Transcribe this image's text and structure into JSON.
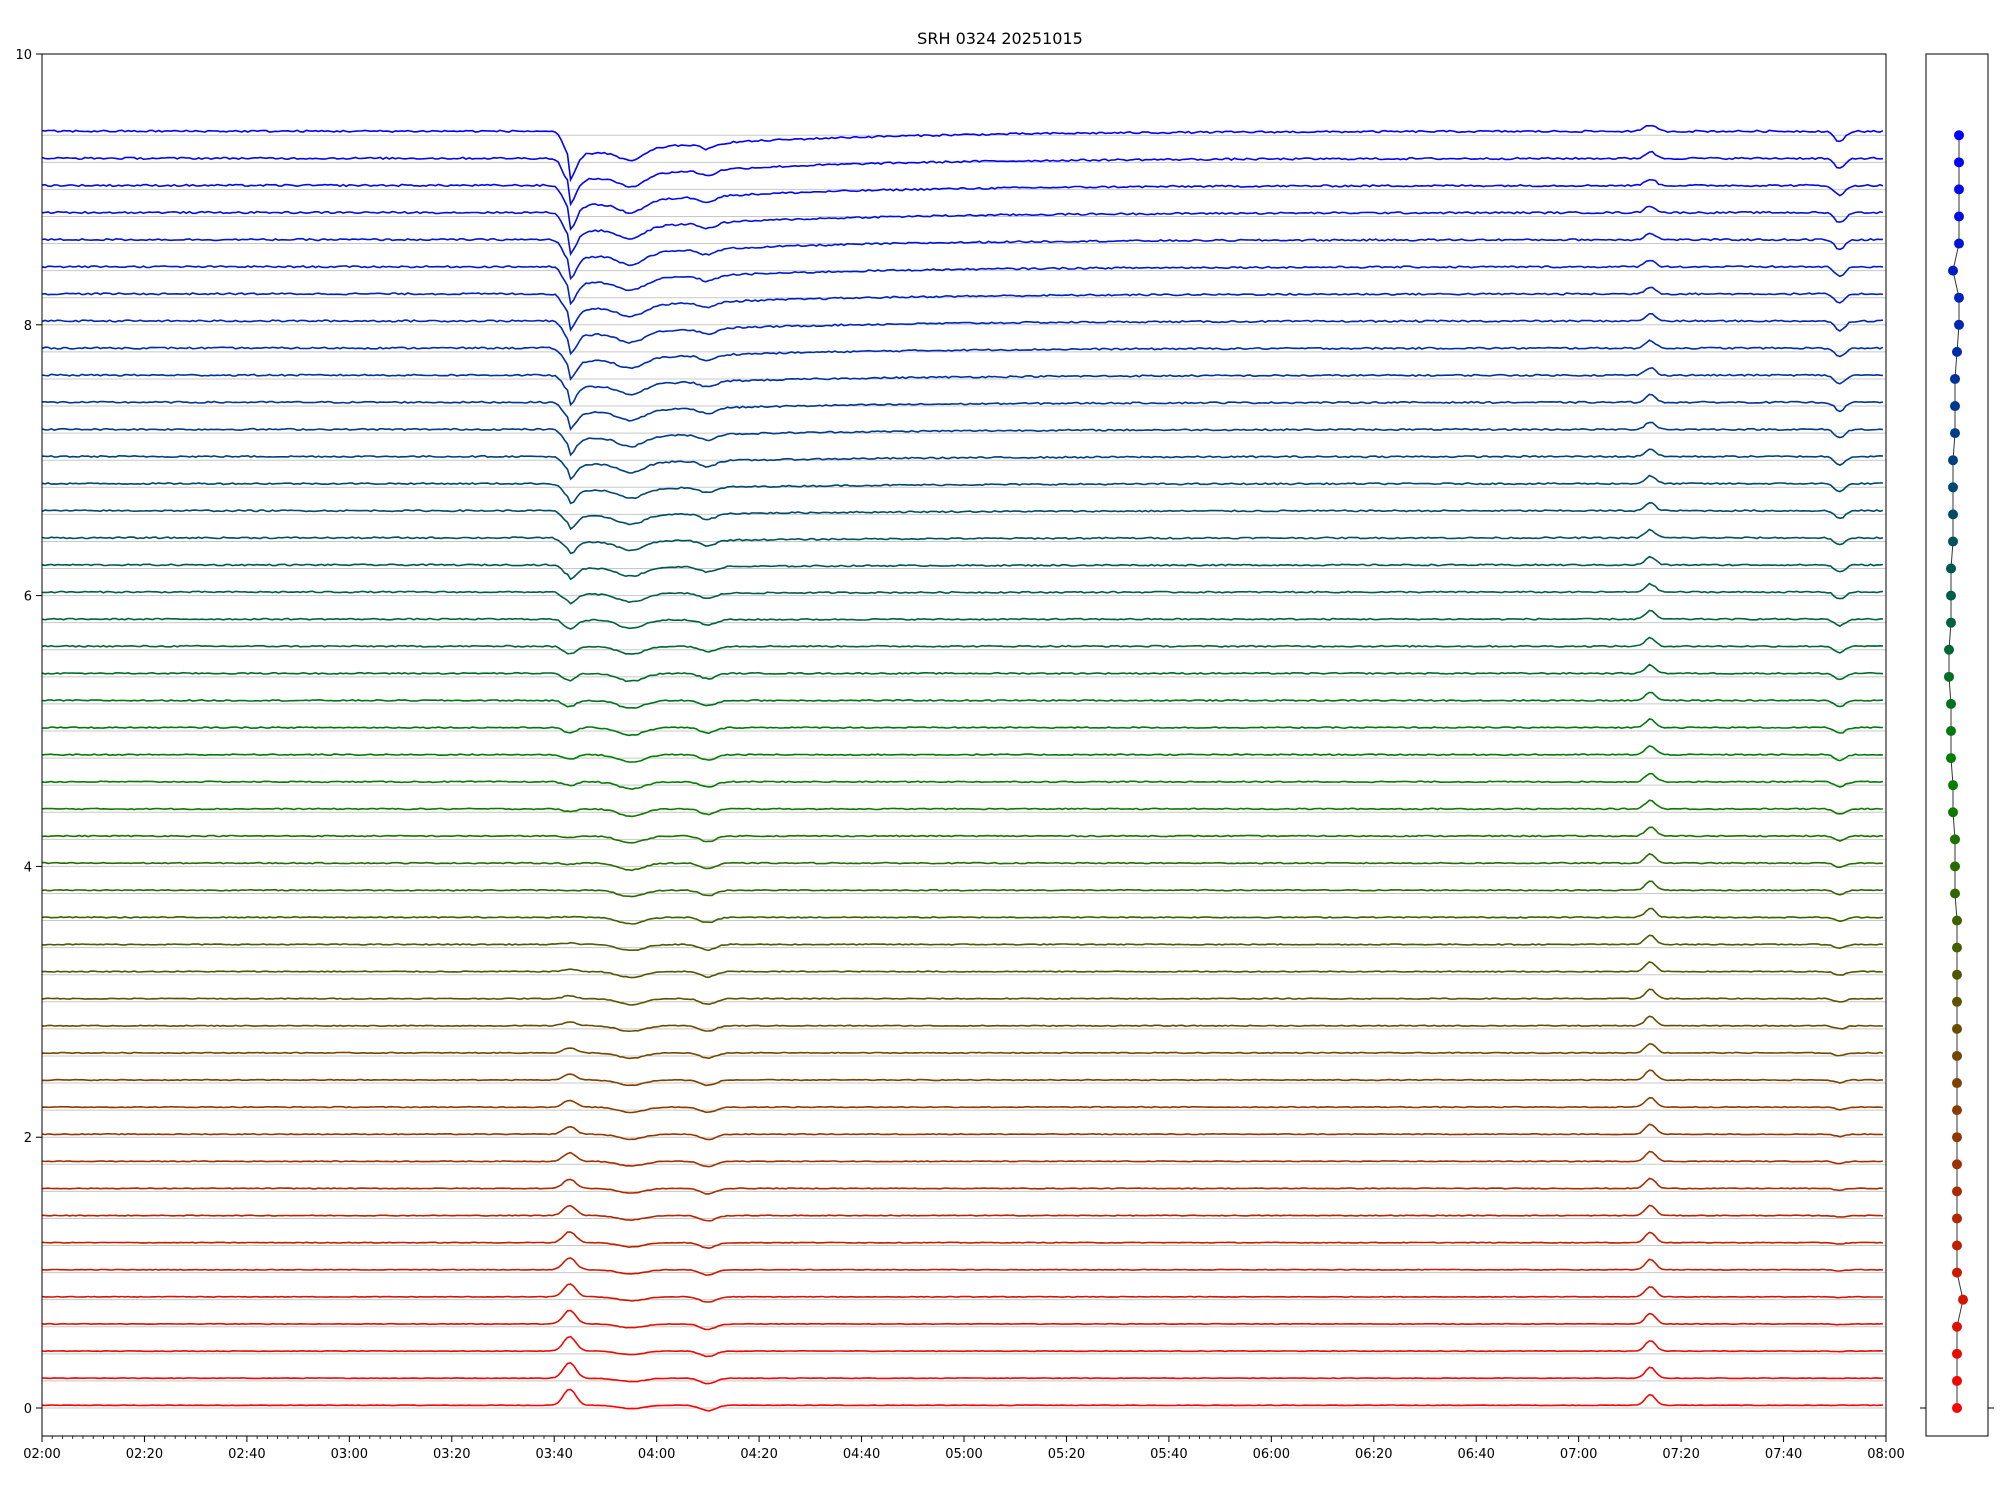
{
  "chart_data": {
    "type": "line",
    "title": "SRH 0324 20251015",
    "xlabel": "",
    "ylabel": "",
    "x_range": [
      "02:00",
      "08:00"
    ],
    "xlim": [
      120,
      480
    ],
    "ylim": [
      0,
      10
    ],
    "x_ticks": [
      "02:00",
      "02:20",
      "02:40",
      "03:00",
      "03:20",
      "03:40",
      "04:00",
      "04:20",
      "04:40",
      "05:00",
      "05:20",
      "05:40",
      "06:00",
      "06:20",
      "06:40",
      "07:00",
      "07:20",
      "07:40",
      "08:00"
    ],
    "y_ticks": [
      "0",
      "2",
      "4",
      "6",
      "8",
      "10"
    ],
    "grid": "horizontal gridlines at each trace baseline",
    "n_traces": 48,
    "trace_spacing": 0.2,
    "color_top": "#0000ff",
    "color_mid": "#008000",
    "color_bottom": "#ff0000",
    "events": [
      {
        "time": "03:43",
        "description_shown": "common dip/peak across traces"
      },
      {
        "time": "03:55",
        "description_shown": "common dip across traces"
      },
      {
        "time": "04:10",
        "description_shown": "common dip across traces"
      },
      {
        "time": "07:14",
        "description_shown": "common peak across traces"
      },
      {
        "time": "07:51",
        "description_shown": "common dip across traces"
      }
    ],
    "side_panel": {
      "type": "scatter",
      "points_count": 48,
      "x_offsets": [
        0.05,
        0.05,
        0.05,
        0.05,
        0.05,
        -0.1,
        0.05,
        0.05,
        0.0,
        -0.05,
        -0.05,
        -0.05,
        -0.1,
        -0.1,
        -0.1,
        -0.1,
        -0.15,
        -0.15,
        -0.15,
        -0.2,
        -0.2,
        -0.15,
        -0.15,
        -0.15,
        -0.1,
        -0.1,
        -0.05,
        -0.05,
        -0.05,
        0.0,
        0.0,
        0.0,
        0.0,
        0.0,
        0.0,
        0.0,
        0.0,
        0.0,
        0.0,
        0.0,
        0.0,
        0.0,
        0.0,
        0.15,
        0.0,
        0.0,
        0.0,
        0.0
      ]
    }
  }
}
